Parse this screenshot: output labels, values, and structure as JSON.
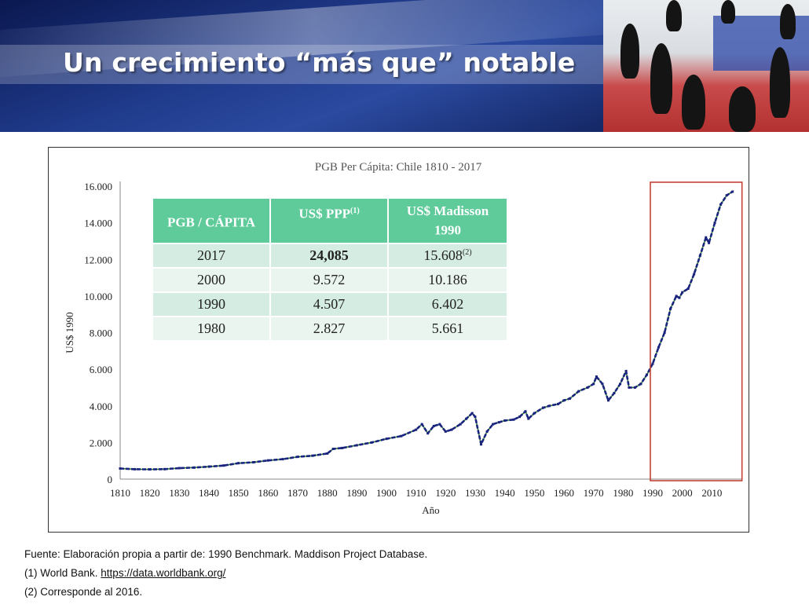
{
  "slide": {
    "title": "Un crecimiento “más que” notable"
  },
  "table": {
    "headers": [
      {
        "text": "PGB / CÁPITA",
        "sup": ""
      },
      {
        "text": "US$ PPP",
        "sup": "(1)"
      },
      {
        "text": "US$ Madisson 1990",
        "sup": ""
      }
    ],
    "rows": [
      {
        "year": "2017",
        "ppp": "24,085",
        "madisson": "15.608",
        "madisson_sup": "(2)"
      },
      {
        "year": "2000",
        "ppp": "9.572",
        "madisson": "10.186",
        "madisson_sup": ""
      },
      {
        "year": "1990",
        "ppp": "4.507",
        "madisson": "6.402",
        "madisson_sup": ""
      },
      {
        "year": "1980",
        "ppp": "2.827",
        "madisson": "5.661",
        "madisson_sup": ""
      }
    ]
  },
  "sources": {
    "line1": "Fuente: Elaboración propia a partir de: 1990 Benchmark. Maddison Project Database.",
    "line2_prefix": "(1)  World Bank. ",
    "line2_link": "https://data.worldbank.org/",
    "line3": "(2)  Corresponde al 2016."
  },
  "chart_data": {
    "type": "line",
    "title": "PGB Per Cápita: Chile 1810 - 2017",
    "xlabel": "Año",
    "ylabel": "US$ 1990",
    "xlim": [
      1810,
      2017
    ],
    "ylim": [
      0,
      16000
    ],
    "x_ticks": [
      "1810",
      "1820",
      "1830",
      "1840",
      "1850",
      "1860",
      "1870",
      "1880",
      "1890",
      "1900",
      "1910",
      "1920",
      "1930",
      "1940",
      "1950",
      "1960",
      "1970",
      "1980",
      "1990",
      "2000",
      "2010"
    ],
    "y_ticks": [
      "0",
      "2.000",
      "4.000",
      "6.000",
      "8.000",
      "10.000",
      "12.000",
      "14.000",
      "16.000"
    ],
    "grid": false,
    "highlight": {
      "x_from": 1990,
      "x_to": 2017,
      "color": "#c0392b"
    },
    "series": [
      {
        "color": "#1a237e",
        "points": [
          [
            1810,
            580
          ],
          [
            1815,
            540
          ],
          [
            1820,
            530
          ],
          [
            1825,
            545
          ],
          [
            1830,
            600
          ],
          [
            1835,
            630
          ],
          [
            1840,
            680
          ],
          [
            1845,
            740
          ],
          [
            1850,
            870
          ],
          [
            1855,
            920
          ],
          [
            1860,
            1020
          ],
          [
            1865,
            1090
          ],
          [
            1870,
            1220
          ],
          [
            1875,
            1280
          ],
          [
            1880,
            1400
          ],
          [
            1882,
            1650
          ],
          [
            1885,
            1700
          ],
          [
            1890,
            1850
          ],
          [
            1895,
            2000
          ],
          [
            1900,
            2200
          ],
          [
            1905,
            2350
          ],
          [
            1910,
            2700
          ],
          [
            1912,
            3000
          ],
          [
            1914,
            2500
          ],
          [
            1916,
            2900
          ],
          [
            1918,
            3000
          ],
          [
            1920,
            2600
          ],
          [
            1922,
            2700
          ],
          [
            1925,
            3000
          ],
          [
            1927,
            3300
          ],
          [
            1929,
            3600
          ],
          [
            1930,
            3400
          ],
          [
            1932,
            1900
          ],
          [
            1934,
            2600
          ],
          [
            1936,
            3000
          ],
          [
            1938,
            3100
          ],
          [
            1940,
            3200
          ],
          [
            1943,
            3250
          ],
          [
            1945,
            3400
          ],
          [
            1947,
            3700
          ],
          [
            1948,
            3300
          ],
          [
            1950,
            3600
          ],
          [
            1953,
            3900
          ],
          [
            1955,
            4000
          ],
          [
            1958,
            4100
          ],
          [
            1960,
            4300
          ],
          [
            1962,
            4400
          ],
          [
            1965,
            4800
          ],
          [
            1968,
            5000
          ],
          [
            1970,
            5200
          ],
          [
            1971,
            5600
          ],
          [
            1973,
            5200
          ],
          [
            1975,
            4300
          ],
          [
            1977,
            4700
          ],
          [
            1979,
            5200
          ],
          [
            1981,
            5900
          ],
          [
            1982,
            5000
          ],
          [
            1984,
            5000
          ],
          [
            1986,
            5200
          ],
          [
            1988,
            5700
          ],
          [
            1990,
            6300
          ],
          [
            1992,
            7200
          ],
          [
            1994,
            8000
          ],
          [
            1996,
            9300
          ],
          [
            1998,
            10000
          ],
          [
            1999,
            9900
          ],
          [
            2000,
            10200
          ],
          [
            2002,
            10400
          ],
          [
            2004,
            11200
          ],
          [
            2006,
            12200
          ],
          [
            2008,
            13200
          ],
          [
            2009,
            12900
          ],
          [
            2011,
            14000
          ],
          [
            2013,
            15000
          ],
          [
            2015,
            15500
          ],
          [
            2017,
            15700
          ]
        ]
      }
    ]
  }
}
